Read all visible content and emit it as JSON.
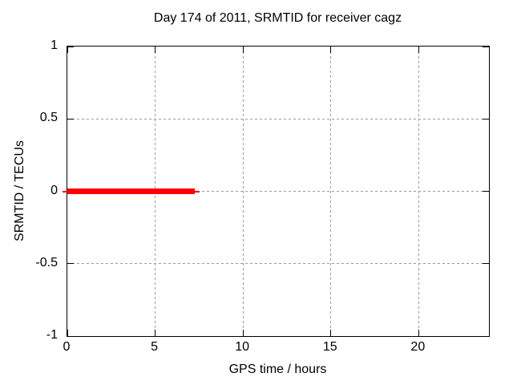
{
  "chart_data": {
    "type": "line",
    "title": "Day 174 of 2011, SRMTID for receiver cagz",
    "xlabel": "GPS time / hours",
    "ylabel": "SRMTID / TECUs",
    "xlim": [
      0,
      24
    ],
    "ylim": [
      -1,
      1
    ],
    "xticks": [
      0,
      5,
      10,
      15,
      20
    ],
    "yticks": [
      1,
      0.5,
      0,
      -0.5,
      -1
    ],
    "xtick_labels": [
      "0",
      "5",
      "10",
      "15",
      "20"
    ],
    "ytick_labels": [
      "1",
      "0.5",
      "0",
      "-0.5",
      "-1"
    ],
    "grid": true,
    "legend": "none",
    "series": [
      {
        "name": "SRMTID",
        "color": "#ff0000",
        "style": "thick horizontal segment at y=0",
        "points": [
          [
            0,
            0
          ],
          [
            7.25,
            0
          ]
        ]
      }
    ]
  },
  "colors": {
    "background": "#ffffff",
    "axis": "#000000",
    "grid": "#9a9a9a",
    "series": "#ff0000",
    "text": "#000000"
  }
}
